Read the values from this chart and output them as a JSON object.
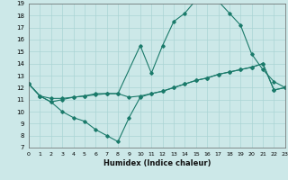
{
  "xlabel": "Humidex (Indice chaleur)",
  "xlim": [
    0,
    23
  ],
  "ylim": [
    7,
    19
  ],
  "yticks": [
    7,
    8,
    9,
    10,
    11,
    12,
    13,
    14,
    15,
    16,
    17,
    18,
    19
  ],
  "xticks": [
    0,
    1,
    2,
    3,
    4,
    5,
    6,
    7,
    8,
    9,
    10,
    11,
    12,
    13,
    14,
    15,
    16,
    17,
    18,
    19,
    20,
    21,
    22,
    23
  ],
  "bg_color": "#cce8e8",
  "grid_color": "#aad4d4",
  "line_color": "#1a7a6a",
  "series_top": [
    [
      0,
      12.3
    ],
    [
      1,
      11.3
    ],
    [
      2,
      11.1
    ],
    [
      3,
      11.1
    ],
    [
      4,
      11.2
    ],
    [
      5,
      11.3
    ],
    [
      6,
      11.4
    ],
    [
      7,
      11.5
    ],
    [
      8,
      11.5
    ],
    [
      10,
      15.5
    ],
    [
      11,
      13.2
    ],
    [
      12,
      15.5
    ],
    [
      13,
      17.5
    ],
    [
      14,
      18.2
    ],
    [
      15,
      19.3
    ],
    [
      16,
      19.2
    ],
    [
      17,
      19.2
    ],
    [
      18,
      18.2
    ],
    [
      19,
      17.2
    ],
    [
      20,
      14.8
    ],
    [
      21,
      13.5
    ],
    [
      22,
      12.5
    ],
    [
      23,
      12.0
    ]
  ],
  "series_mid": [
    [
      0,
      12.3
    ],
    [
      1,
      11.3
    ],
    [
      2,
      10.8
    ],
    [
      3,
      11.0
    ],
    [
      4,
      11.2
    ],
    [
      5,
      11.3
    ],
    [
      6,
      11.5
    ],
    [
      7,
      11.5
    ],
    [
      8,
      11.5
    ],
    [
      9,
      11.2
    ],
    [
      10,
      11.3
    ],
    [
      11,
      11.5
    ],
    [
      12,
      11.7
    ],
    [
      13,
      12.0
    ],
    [
      14,
      12.3
    ],
    [
      15,
      12.6
    ],
    [
      16,
      12.8
    ],
    [
      17,
      13.1
    ],
    [
      18,
      13.3
    ],
    [
      19,
      13.5
    ],
    [
      20,
      13.7
    ],
    [
      21,
      14.0
    ],
    [
      22,
      11.8
    ],
    [
      23,
      12.0
    ]
  ],
  "series_bot": [
    [
      0,
      12.3
    ],
    [
      1,
      11.3
    ],
    [
      2,
      10.8
    ],
    [
      3,
      10.0
    ],
    [
      4,
      9.5
    ],
    [
      5,
      9.2
    ],
    [
      6,
      8.5
    ],
    [
      7,
      8.0
    ],
    [
      8,
      7.5
    ],
    [
      9,
      9.5
    ],
    [
      10,
      11.2
    ],
    [
      11,
      11.5
    ],
    [
      12,
      11.7
    ],
    [
      13,
      12.0
    ],
    [
      14,
      12.3
    ],
    [
      15,
      12.6
    ],
    [
      16,
      12.8
    ],
    [
      17,
      13.1
    ],
    [
      18,
      13.3
    ],
    [
      19,
      13.5
    ],
    [
      20,
      13.7
    ],
    [
      21,
      14.0
    ],
    [
      22,
      11.8
    ],
    [
      23,
      12.0
    ]
  ]
}
